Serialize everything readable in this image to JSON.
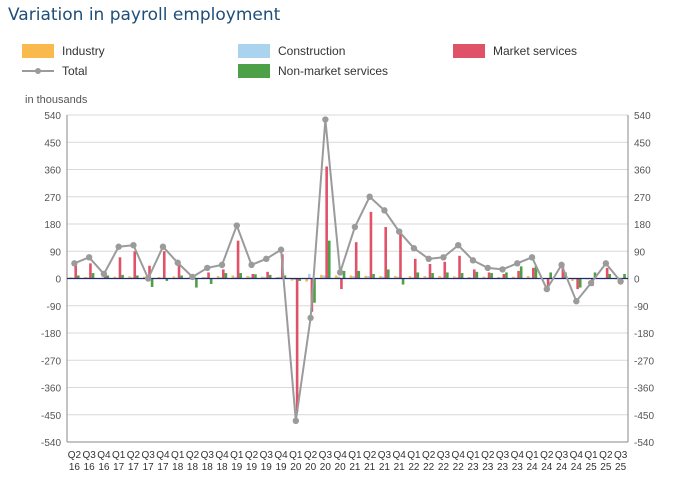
{
  "title": "Variation in payroll employment",
  "unit_label": "in thousands",
  "legend": {
    "industry": "Industry",
    "construction": "Construction",
    "market": "Market services",
    "total": "Total",
    "nonmarket": "Non-market services"
  },
  "colors": {
    "industry": "#f9b94c",
    "construction": "#a9d3ef",
    "market": "#e05267",
    "nonmarket": "#4ea046",
    "total": "#9b9b9b",
    "grid": "#d9d9d9",
    "axis_text": "#555555"
  },
  "chart_data": {
    "type": "bar",
    "title": "Variation in payroll employment",
    "ylabel": "in thousands",
    "ylim": [
      -540,
      540
    ],
    "yticks": [
      -540,
      -450,
      -360,
      -270,
      -180,
      -90,
      0,
      90,
      180,
      270,
      360,
      450,
      540
    ],
    "x_labels_line1": [
      "Q2",
      "Q3",
      "Q4",
      "Q1",
      "Q2",
      "Q3",
      "Q4",
      "Q1",
      "Q2",
      "Q3",
      "Q4",
      "Q1",
      "Q2",
      "Q3",
      "Q4",
      "Q1",
      "Q2",
      "Q3",
      "Q4",
      "Q1",
      "Q2",
      "Q3",
      "Q4",
      "Q1",
      "Q2",
      "Q3",
      "Q4",
      "Q1",
      "Q2",
      "Q3",
      "Q4",
      "Q1",
      "Q2",
      "Q3",
      "Q4",
      "Q1",
      "Q2",
      "Q3"
    ],
    "x_labels_line2": [
      "16",
      "16",
      "16",
      "17",
      "17",
      "17",
      "17",
      "18",
      "18",
      "18",
      "18",
      "19",
      "19",
      "19",
      "19",
      "20",
      "20",
      "20",
      "20",
      "21",
      "21",
      "21",
      "21",
      "22",
      "22",
      "22",
      "22",
      "23",
      "23",
      "23",
      "23",
      "24",
      "24",
      "24",
      "24",
      "25",
      "25",
      "25"
    ],
    "categories": [
      "Q2 16",
      "Q3 16",
      "Q4 16",
      "Q1 17",
      "Q2 17",
      "Q3 17",
      "Q4 17",
      "Q1 18",
      "Q2 18",
      "Q3 18",
      "Q4 18",
      "Q1 19",
      "Q2 19",
      "Q3 19",
      "Q4 19",
      "Q1 20",
      "Q2 20",
      "Q3 20",
      "Q4 20",
      "Q1 21",
      "Q2 21",
      "Q3 21",
      "Q4 21",
      "Q1 22",
      "Q2 22",
      "Q3 22",
      "Q4 22",
      "Q1 23",
      "Q2 23",
      "Q3 23",
      "Q4 23",
      "Q1 24",
      "Q2 24",
      "Q3 24",
      "Q4 24",
      "Q1 25",
      "Q2 25",
      "Q3 25"
    ],
    "series": [
      {
        "name": "Industry",
        "key": "industry",
        "kind": "bar",
        "values": [
          4,
          5,
          -2,
          6,
          7,
          6,
          5,
          7,
          3,
          5,
          8,
          10,
          8,
          6,
          5,
          -7,
          -10,
          12,
          10,
          10,
          9,
          8,
          8,
          8,
          8,
          8,
          7,
          5,
          6,
          5,
          6,
          8,
          -3,
          -2,
          -8,
          -3,
          -2,
          -3
        ]
      },
      {
        "name": "Construction",
        "key": "construction",
        "kind": "bar",
        "values": [
          3,
          4,
          3,
          3,
          4,
          3,
          3,
          3,
          4,
          5,
          4,
          5,
          6,
          5,
          6,
          -5,
          15,
          10,
          6,
          8,
          8,
          6,
          6,
          4,
          4,
          4,
          4,
          3,
          3,
          3,
          3,
          3,
          -2,
          -2,
          -3,
          -2,
          -2,
          -3
        ]
      },
      {
        "name": "Market services",
        "key": "market",
        "kind": "bar",
        "values": [
          45,
          50,
          15,
          70,
          90,
          42,
          90,
          45,
          12,
          20,
          30,
          125,
          15,
          22,
          80,
          -440,
          -110,
          370,
          -35,
          120,
          220,
          170,
          155,
          65,
          48,
          55,
          75,
          30,
          20,
          15,
          25,
          35,
          -30,
          45,
          -35,
          -25,
          35,
          0
        ]
      },
      {
        "name": "Non-market services",
        "key": "nonmarket",
        "kind": "bar",
        "values": [
          10,
          18,
          10,
          12,
          10,
          -28,
          -8,
          10,
          -30,
          -18,
          18,
          18,
          14,
          12,
          10,
          -8,
          -80,
          125,
          25,
          25,
          15,
          30,
          -20,
          20,
          18,
          20,
          18,
          22,
          18,
          20,
          40,
          40,
          20,
          20,
          -30,
          20,
          15,
          15
        ]
      },
      {
        "name": "Total",
        "key": "total",
        "kind": "line",
        "values": [
          50,
          70,
          15,
          105,
          110,
          0,
          105,
          52,
          5,
          35,
          45,
          175,
          45,
          65,
          95,
          -470,
          -130,
          525,
          20,
          170,
          270,
          225,
          155,
          100,
          65,
          70,
          110,
          60,
          35,
          30,
          50,
          70,
          -35,
          45,
          -75,
          -15,
          50,
          -10
        ]
      }
    ]
  }
}
